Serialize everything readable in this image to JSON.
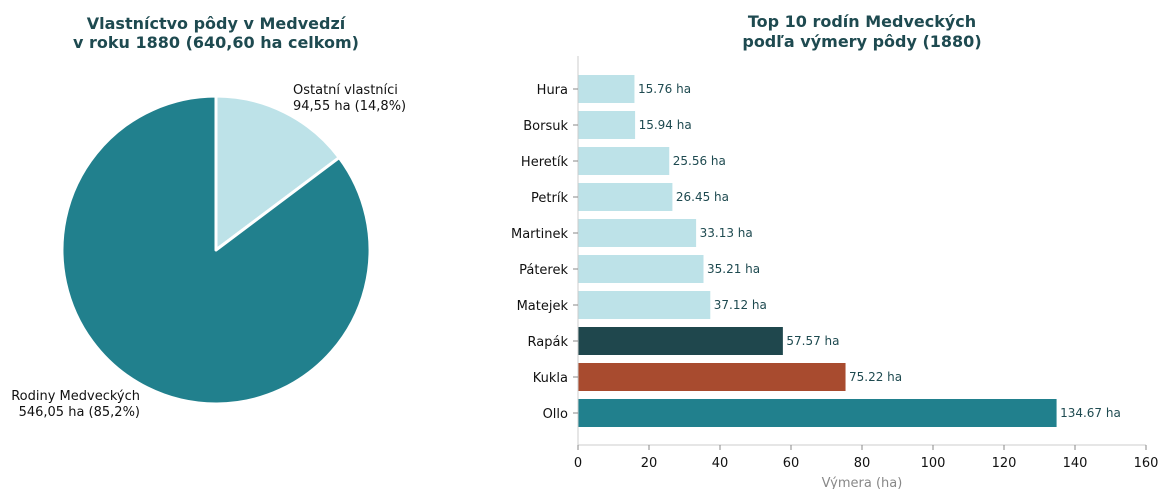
{
  "chart_data": [
    {
      "type": "pie",
      "title_lines": [
        "Vlastníctvo pôdy v Medvedzí",
        "v roku 1880 (640,60 ha celkom)"
      ],
      "slices": [
        {
          "label_lines": [
            "Ostatní vlastníci",
            "94,55 ha (14,8%)"
          ],
          "value": 94.55,
          "percent": 14.8,
          "color": "#bde2e8"
        },
        {
          "label_lines": [
            "Rodiny Medveckých",
            "546,05 ha (85,2%)"
          ],
          "value": 546.05,
          "percent": 85.2,
          "color": "#21808d"
        }
      ]
    },
    {
      "type": "bar",
      "orientation": "horizontal",
      "title_lines": [
        "Top 10 rodín Medveckých",
        "podľa výmery pôdy (1880)"
      ],
      "categories": [
        "Hura",
        "Borsuk",
        "Heretík",
        "Petrík",
        "Martinek",
        "Páterek",
        "Matejek",
        "Rapák",
        "Kukla",
        "Ollo"
      ],
      "values": [
        15.76,
        15.94,
        25.56,
        26.45,
        33.13,
        35.21,
        37.12,
        57.57,
        75.22,
        134.67
      ],
      "value_labels": [
        "15.76 ha",
        "15.94 ha",
        "25.56 ha",
        "26.45 ha",
        "33.13 ha",
        "35.21 ha",
        "37.12 ha",
        "57.57 ha",
        "75.22 ha",
        "134.67 ha"
      ],
      "colors": [
        "#bde2e8",
        "#bde2e8",
        "#bde2e8",
        "#bde2e8",
        "#bde2e8",
        "#bde2e8",
        "#bde2e8",
        "#1f474d",
        "#a84b2f",
        "#21808d"
      ],
      "xlabel": "Výmera (ha)",
      "xlim": [
        0,
        160
      ],
      "xticks": [
        0,
        20,
        40,
        60,
        80,
        100,
        120,
        140,
        160
      ],
      "grid": false
    }
  ]
}
